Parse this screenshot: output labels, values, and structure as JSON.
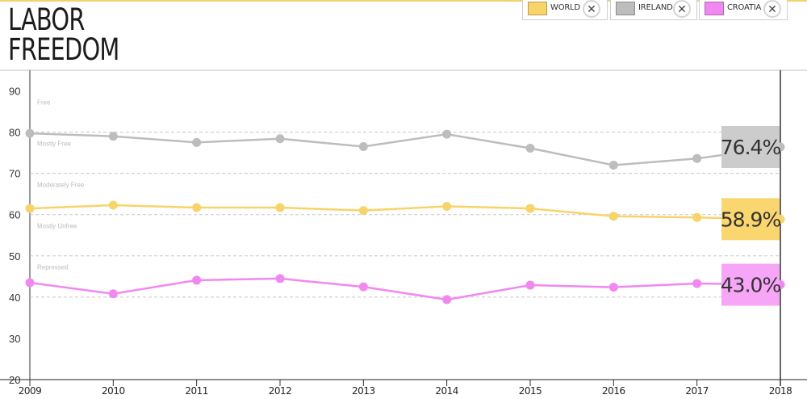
{
  "title_line1": "LABOR",
  "title_line2": "FREEDOM",
  "legend": [
    {
      "label": "WORLD",
      "color": "#f8d468",
      "remove_icon": "close-circle-icon"
    },
    {
      "label": "IRELAND",
      "color": "#bdbdbd",
      "remove_icon": "close-circle-icon"
    },
    {
      "label": "CROATIA",
      "color": "#f188f1",
      "remove_icon": "close-circle-icon"
    }
  ],
  "remove_glyph": "✕",
  "chart_data": {
    "type": "line",
    "x": [
      "2009",
      "2010",
      "2011",
      "2012",
      "2013",
      "2014",
      "2015",
      "2016",
      "2017",
      "2018"
    ],
    "ylim": [
      20,
      95
    ],
    "yticks": [
      "20",
      "30",
      "40",
      "50",
      "60",
      "70",
      "80",
      "90"
    ],
    "grid": "dashed lines at category boundaries",
    "bands": [
      {
        "label": "Free",
        "y": 80
      },
      {
        "label": "Mostly Free",
        "y": 70
      },
      {
        "label": "Moderately Free",
        "y": 60
      },
      {
        "label": "Mostly Unfree",
        "y": 50
      },
      {
        "label": "Repressed",
        "y": 40
      }
    ],
    "series": [
      {
        "name": "IRELAND",
        "color": "#bdbdbd",
        "label_bg": "#cccccc",
        "values": [
          79.7,
          79.0,
          77.5,
          78.4,
          76.5,
          79.5,
          76.1,
          72.0,
          73.6,
          76.4
        ],
        "end_label": "76.4%"
      },
      {
        "name": "WORLD",
        "color": "#f8d468",
        "label_bg": "#fad66e",
        "values": [
          61.5,
          62.3,
          61.7,
          61.7,
          61.0,
          62.0,
          61.5,
          59.6,
          59.3,
          58.9
        ],
        "end_label": "58.9%"
      },
      {
        "name": "CROATIA",
        "color": "#f188f1",
        "label_bg": "#f7a6f7",
        "values": [
          43.5,
          40.8,
          44.1,
          44.5,
          42.5,
          39.4,
          42.9,
          42.4,
          43.3,
          43.0
        ],
        "end_label": "43.0%"
      }
    ]
  }
}
